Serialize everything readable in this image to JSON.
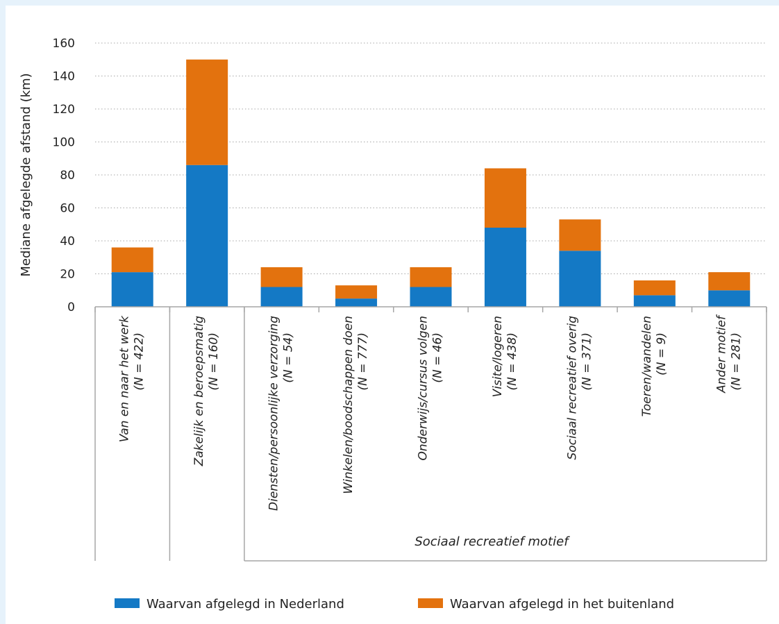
{
  "chart_data": {
    "type": "bar",
    "stacked": true,
    "title": "",
    "xlabel": "",
    "ylabel": "Mediane afgelegde afstand (km)",
    "ylim": [
      0,
      160
    ],
    "yticks": [
      0,
      20,
      40,
      60,
      80,
      100,
      120,
      140,
      160
    ],
    "grid": true,
    "legend": "bottom",
    "categories": [
      {
        "label": "Van en naar het werk",
        "n": "(N = 422)"
      },
      {
        "label": "Zakelijk en beroepsmatig",
        "n": "(N = 160)"
      },
      {
        "label": "Diensten/persoonlijke verzorging",
        "n": "(N = 54)"
      },
      {
        "label": "Winkelen/boodschappen doen",
        "n": "(N = 777)"
      },
      {
        "label": "Onderwijs/cursus volgen",
        "n": "(N = 46)"
      },
      {
        "label": "Visite/logeren",
        "n": "(N = 438)"
      },
      {
        "label": "Sociaal recreatief overig",
        "n": "(N = 371)"
      },
      {
        "label": "Toeren/wandelen",
        "n": "(N = 9)"
      },
      {
        "label": "Ander motief",
        "n": "(N = 281)"
      }
    ],
    "group_label": "Sociaal recreatief motief",
    "series": [
      {
        "name": "Waarvan afgelegd in Nederland",
        "color": "#1479c5",
        "values": [
          21,
          86,
          12,
          5,
          12,
          48,
          34,
          7,
          10
        ]
      },
      {
        "name": "Waarvan afgelegd in het buitenland",
        "color": "#e3720e",
        "values": [
          15,
          64,
          12,
          8,
          12,
          36,
          19,
          9,
          11
        ]
      }
    ]
  },
  "colors": {
    "background": "#e6f2fb",
    "panel": "#ffffff",
    "grid": "#a6a6a6",
    "axis": "#a6a6a6"
  }
}
